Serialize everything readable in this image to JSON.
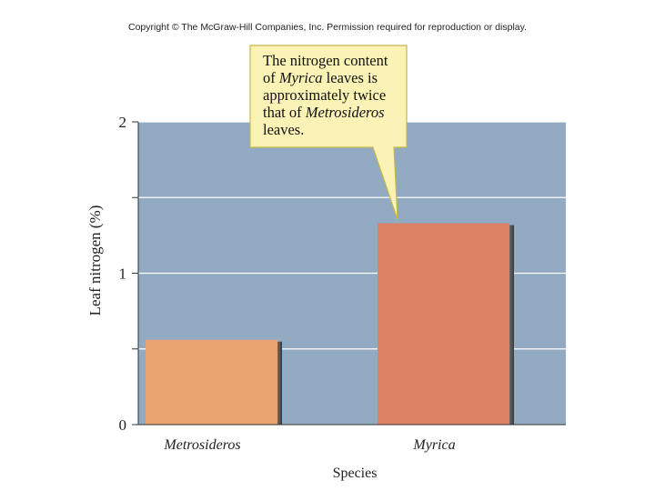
{
  "copyright": "Copyright © The McGraw-Hill Companies, Inc. Permission required for reproduction or display.",
  "chart_data": {
    "type": "bar",
    "categories": [
      "Metrosideros",
      "Myrica"
    ],
    "values": [
      0.56,
      1.33
    ],
    "xlabel": "Species",
    "ylabel": "Leaf nitrogen (%)",
    "ylim": [
      0,
      2
    ],
    "yticks": [
      0,
      0.5,
      1,
      1.5,
      2
    ],
    "yticklabels": [
      "0",
      "",
      "1",
      "",
      "2"
    ],
    "grid": true,
    "colors": {
      "plot_background": "#93abc2",
      "bars": [
        "#e9a46f",
        "#de8265"
      ],
      "callout_fill": "#fbf2b5",
      "callout_stroke": "#c8b84a"
    },
    "annotation": {
      "lines": [
        [
          {
            "text": "The nitrogen content",
            "italic": false
          }
        ],
        [
          {
            "text": "of ",
            "italic": false
          },
          {
            "text": "Myrica",
            "italic": true
          },
          {
            "text": " leaves is",
            "italic": false
          }
        ],
        [
          {
            "text": "approximately twice",
            "italic": false
          }
        ],
        [
          {
            "text": "that of ",
            "italic": false
          },
          {
            "text": "Metrosideros",
            "italic": true
          }
        ],
        [
          {
            "text": "leaves.",
            "italic": false
          }
        ]
      ],
      "points_to": "Myrica"
    }
  }
}
